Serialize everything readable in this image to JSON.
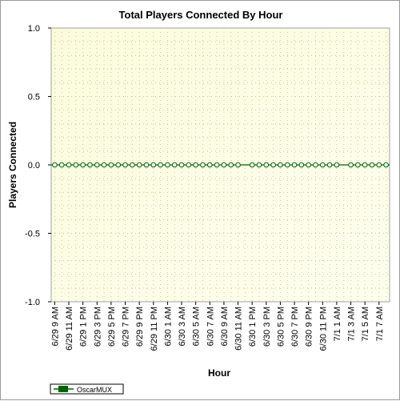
{
  "chart_data": {
    "type": "line",
    "title": "Total Players Connected By Hour",
    "xlabel": "Hour",
    "ylabel": "Players Connected",
    "ylim": [
      -1.0,
      1.0
    ],
    "yticks": [
      "1.0",
      "0.5",
      "0.0",
      "-0.5",
      "-1.0"
    ],
    "ytick_values": [
      1.0,
      0.5,
      0.0,
      -0.5,
      -1.0
    ],
    "xtick_labels": [
      "6/29 9 AM",
      "6/29 11 AM",
      "6/29 1 PM",
      "6/29 3 PM",
      "6/29 5 PM",
      "6/29 7 PM",
      "6/29 9 PM",
      "6/29 11 PM",
      "6/30 1 AM",
      "6/30 3 AM",
      "6/30 5 AM",
      "6/30 7 AM",
      "6/30 9 AM",
      "6/30 11 AM",
      "6/30 1 PM",
      "6/30 3 PM",
      "6/30 5 PM",
      "6/30 7 PM",
      "6/30 9 PM",
      "6/30 11 PM",
      "7/1 1 AM",
      "7/1 3 AM",
      "7/1 5 AM",
      "7/1 7 AM"
    ],
    "grid": true,
    "legend_position": "bottom-left",
    "series": [
      {
        "name": "OscarMUX",
        "color": "#006400",
        "marker": "circle",
        "values": [
          0,
          0,
          0,
          0,
          0,
          0,
          0,
          0,
          0,
          0,
          0,
          0,
          0,
          0,
          0,
          0,
          0,
          0,
          0,
          0,
          0,
          0,
          0,
          0,
          0,
          0,
          0,
          null,
          0,
          0,
          0,
          0,
          0,
          0,
          0,
          0,
          0,
          0,
          0,
          0,
          0,
          null,
          0,
          0,
          0,
          0,
          0,
          0
        ]
      }
    ]
  }
}
